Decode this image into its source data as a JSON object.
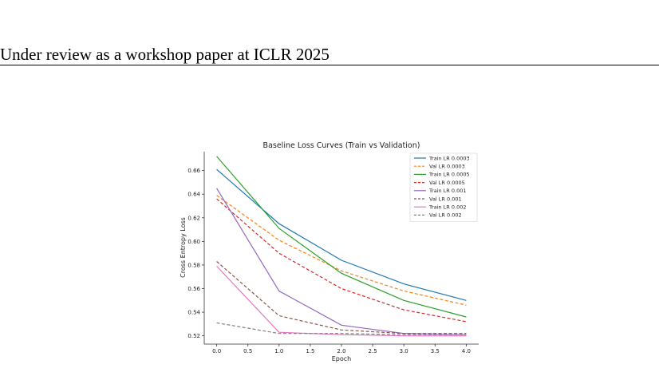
{
  "header": {
    "text": "Under review as a workshop paper at ICLR 2025"
  },
  "chart_data": {
    "type": "line",
    "title": "Baseline Loss Curves (Train vs Validation)",
    "xlabel": "Epoch",
    "ylabel": "Cross Entropy Loss",
    "xlim": [
      -0.2,
      4.2
    ],
    "ylim": [
      0.513,
      0.676
    ],
    "xticks": [
      0.0,
      0.5,
      1.0,
      1.5,
      2.0,
      2.5,
      3.0,
      3.5,
      4.0
    ],
    "xtick_labels": [
      "0.0",
      "0.5",
      "1.0",
      "1.5",
      "2.0",
      "2.5",
      "3.0",
      "3.5",
      "4.0"
    ],
    "yticks": [
      0.52,
      0.54,
      0.56,
      0.58,
      0.6,
      0.62,
      0.64,
      0.66
    ],
    "ytick_labels": [
      "0.52",
      "0.54",
      "0.56",
      "0.58",
      "0.60",
      "0.62",
      "0.64",
      "0.66"
    ],
    "grid": false,
    "legend_position": "top-right",
    "x": [
      0,
      1,
      2,
      3,
      4
    ],
    "series": [
      {
        "name": "Train LR 0.0003",
        "color": "#1f77b4",
        "dash": "solid",
        "values": [
          0.661,
          0.615,
          0.584,
          0.564,
          0.55
        ]
      },
      {
        "name": "Val LR 0.0003",
        "color": "#ff7f0e",
        "dash": "dashed",
        "values": [
          0.639,
          0.601,
          0.575,
          0.558,
          0.546
        ]
      },
      {
        "name": "Train LR 0.0005",
        "color": "#2ca02c",
        "dash": "solid",
        "values": [
          0.672,
          0.611,
          0.573,
          0.55,
          0.536
        ]
      },
      {
        "name": "Val LR 0.0005",
        "color": "#d62728",
        "dash": "dashed",
        "values": [
          0.636,
          0.59,
          0.56,
          0.542,
          0.532
        ]
      },
      {
        "name": "Train LR 0.001",
        "color": "#9467bd",
        "dash": "solid",
        "values": [
          0.645,
          0.558,
          0.529,
          0.522,
          0.521
        ]
      },
      {
        "name": "Val LR 0.001",
        "color": "#8c564b",
        "dash": "dashed",
        "values": [
          0.583,
          0.537,
          0.525,
          0.522,
          0.522
        ]
      },
      {
        "name": "Train LR 0.002",
        "color": "#e377c2",
        "dash": "solid",
        "values": [
          0.579,
          0.523,
          0.521,
          0.52,
          0.52
        ]
      },
      {
        "name": "Val LR 0.002",
        "color": "#7f7f7f",
        "dash": "dashed",
        "values": [
          0.531,
          0.522,
          0.522,
          0.521,
          0.521
        ]
      }
    ]
  }
}
